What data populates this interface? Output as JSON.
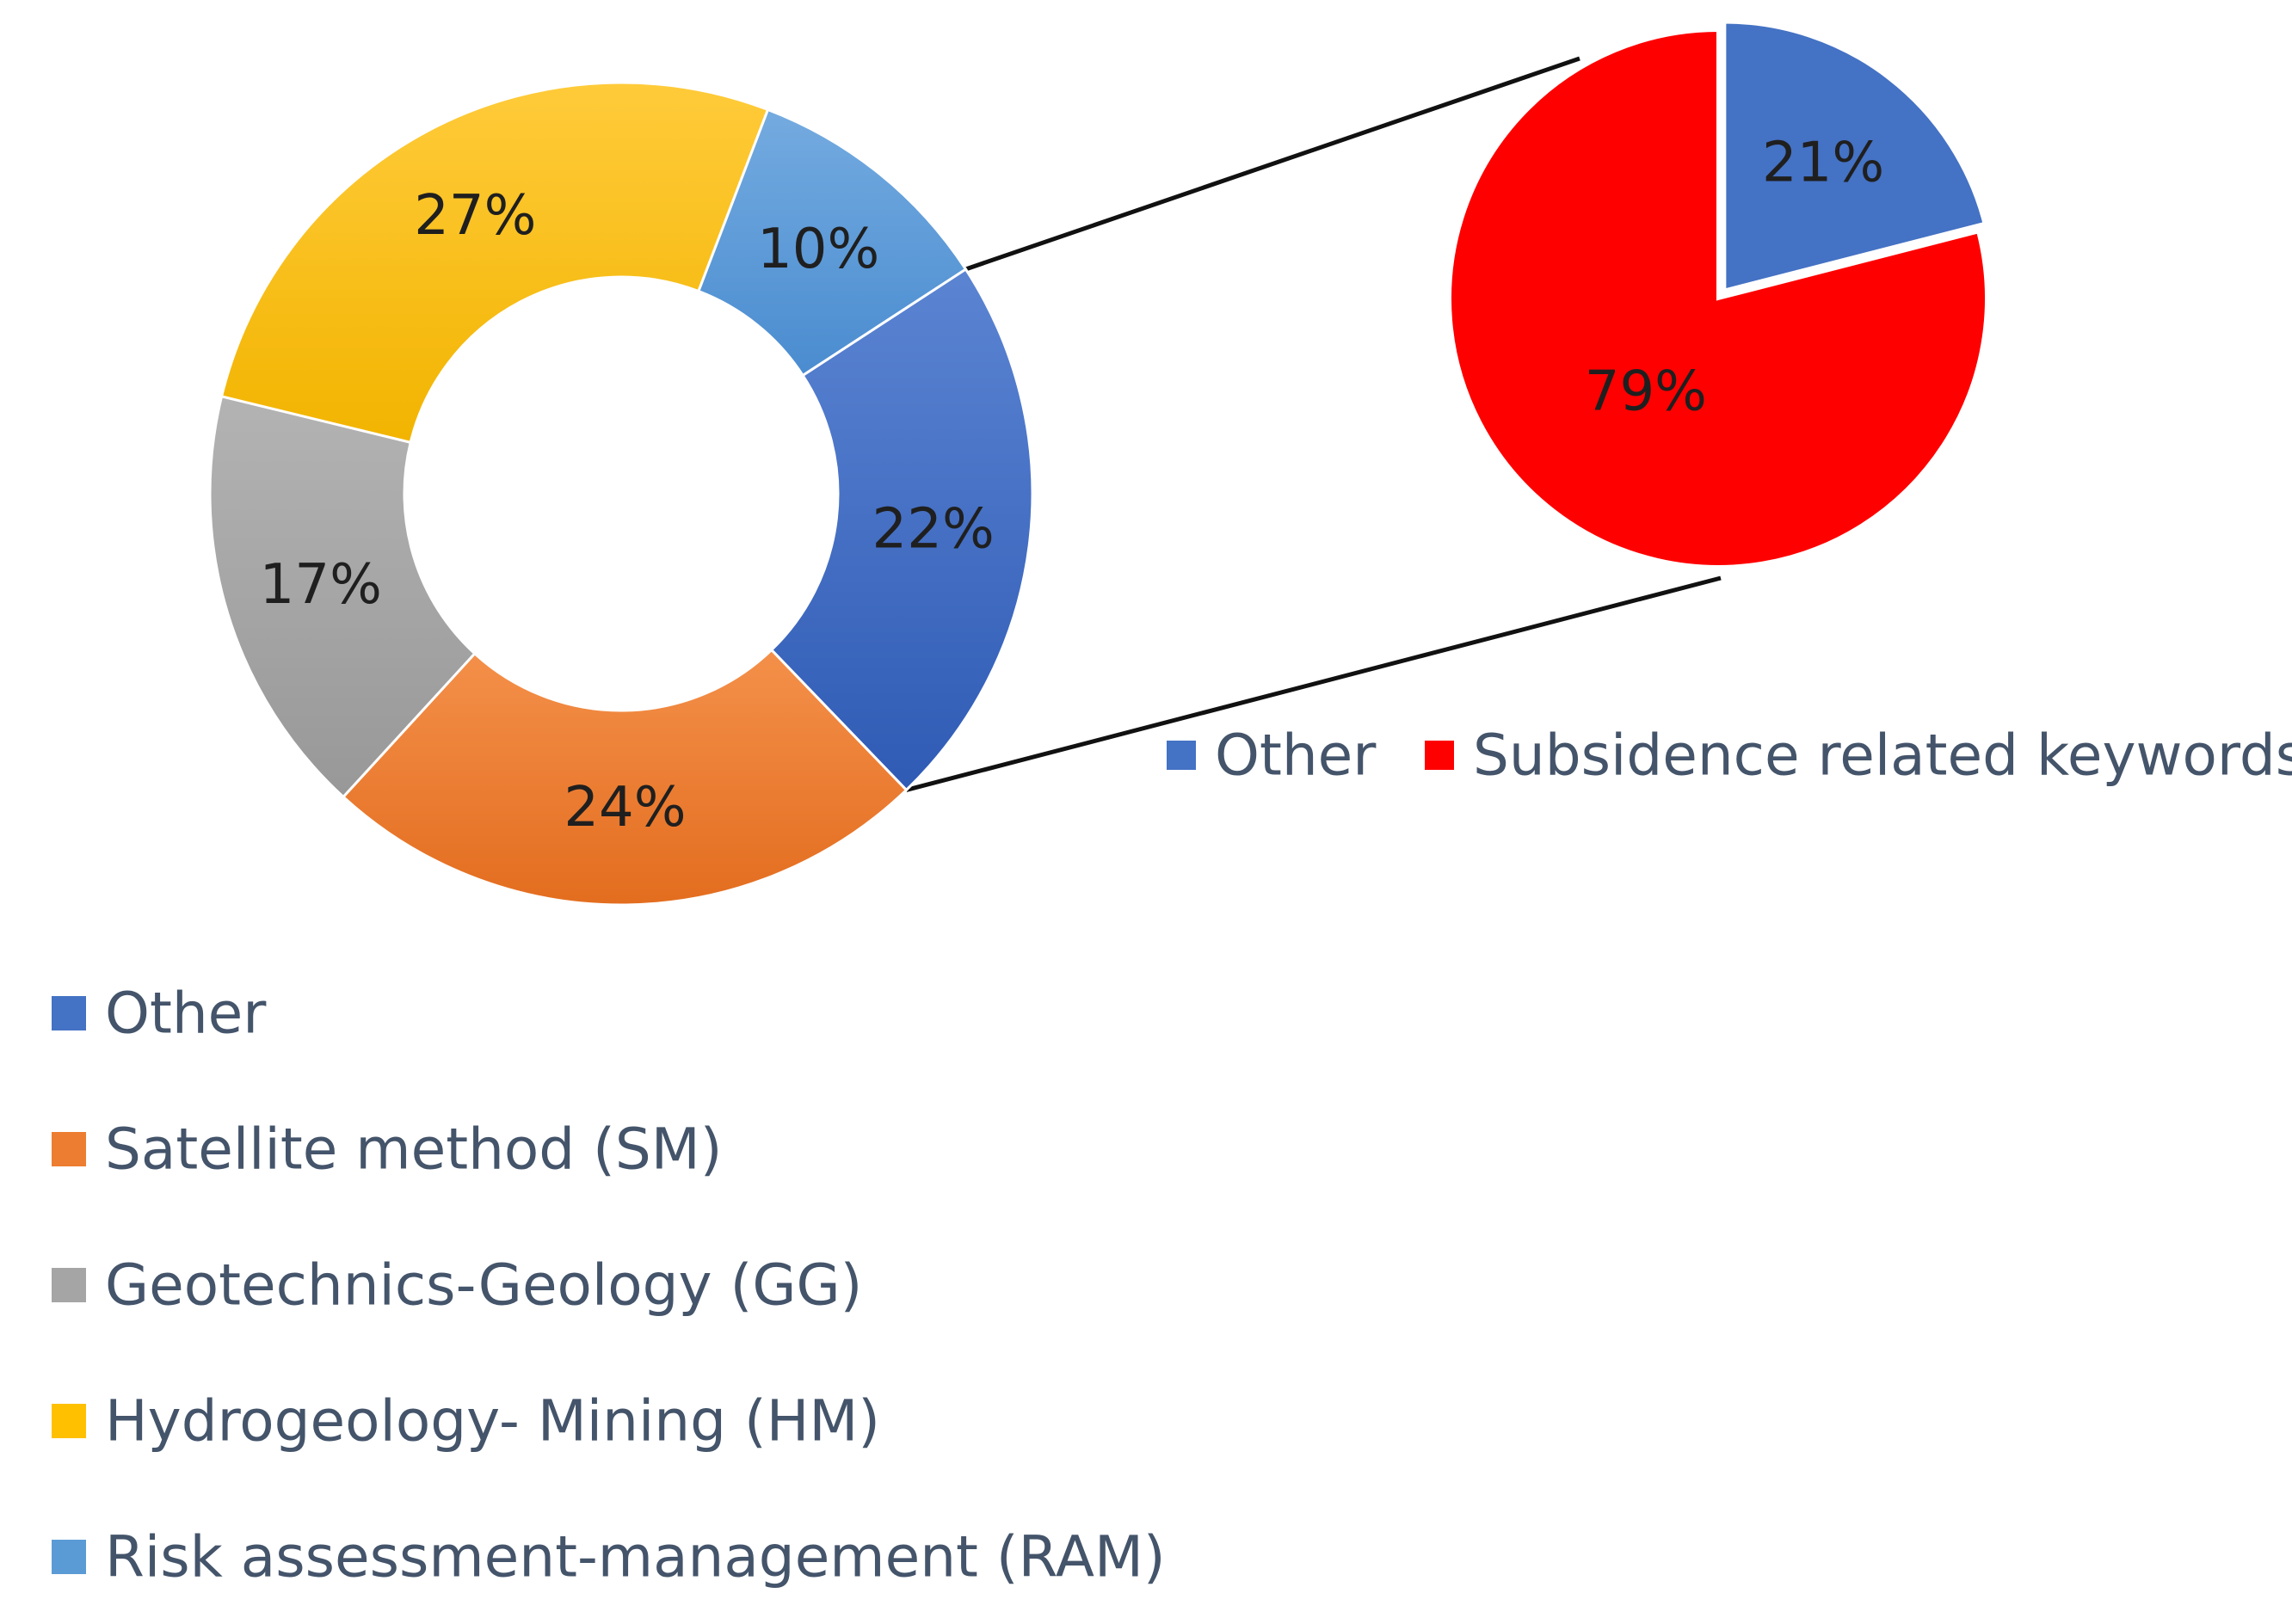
{
  "chart_data": [
    {
      "type": "pie",
      "variant": "donut",
      "categories": [
        "Other",
        "Satellite method (SM)",
        "Geotechnics-Geology (GG)",
        "Hydrogeology- Mining (HM)",
        "Risk assessment-management (RAM)"
      ],
      "values": [
        22,
        24,
        17,
        27,
        10
      ],
      "labels": [
        "22%",
        "24%",
        "17%",
        "27%",
        "10%"
      ],
      "colors": [
        "#4472c4",
        "#ed7d31",
        "#a5a5a5",
        "#ffc000",
        "#5b9bd5"
      ],
      "legend_position": "bottom-left"
    },
    {
      "type": "pie",
      "categories": [
        "Other",
        "Subsidence related keywords"
      ],
      "values": [
        21,
        79
      ],
      "labels": [
        "21%",
        "79%"
      ],
      "colors": [
        "#4472c4",
        "#ff0000"
      ],
      "legend_position": "bottom"
    }
  ]
}
